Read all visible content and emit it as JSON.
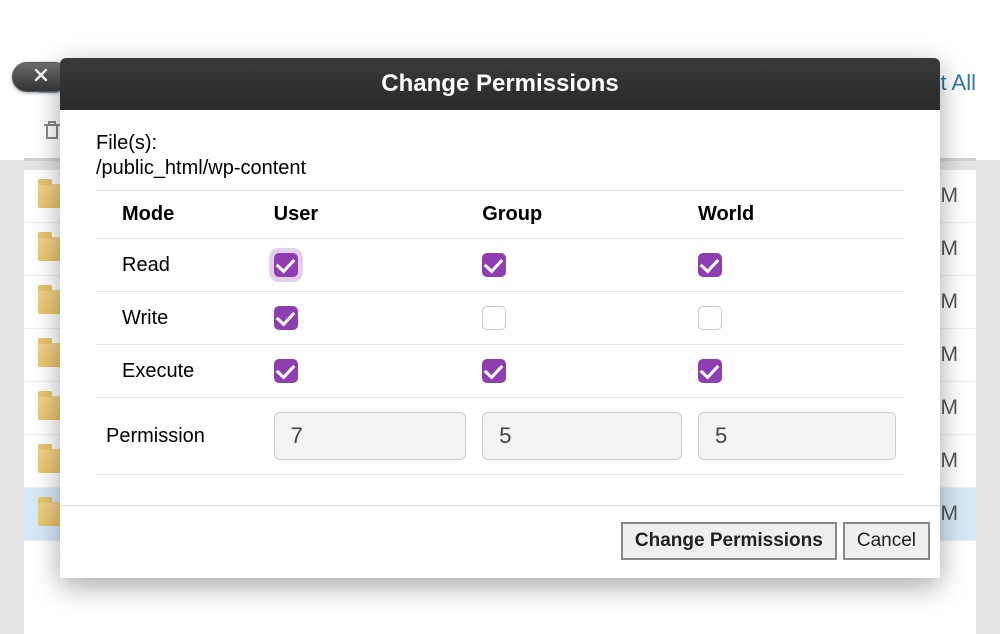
{
  "background": {
    "top_link_partial": "ect All",
    "row_times": [
      "PM",
      "M",
      "M",
      "PM",
      "M",
      "PM",
      "PM"
    ],
    "selected_row_index": 6
  },
  "dialog": {
    "title": "Change Permissions",
    "files_label": "File(s):",
    "files_path": "/public_html/wp-content",
    "columns": {
      "mode": "Mode",
      "user": "User",
      "group": "Group",
      "world": "World"
    },
    "rows": {
      "read": "Read",
      "write": "Write",
      "execute": "Execute"
    },
    "checkboxes": {
      "read": {
        "user": true,
        "group": true,
        "world": true
      },
      "write": {
        "user": true,
        "group": false,
        "world": false
      },
      "execute": {
        "user": true,
        "group": true,
        "world": true
      }
    },
    "focused_checkbox": "read.user",
    "permission_label": "Permission",
    "permission_values": {
      "user": "7",
      "group": "5",
      "world": "5"
    },
    "buttons": {
      "confirm": "Change Permissions",
      "cancel": "Cancel"
    }
  },
  "colors": {
    "checkbox_checked": "#8e3eb0",
    "dialog_titlebar_bg": "#2e2e2e",
    "link_color": "#2a7ab0",
    "folder_color": "#e8c56e",
    "page_background": "#e4e4e4"
  }
}
